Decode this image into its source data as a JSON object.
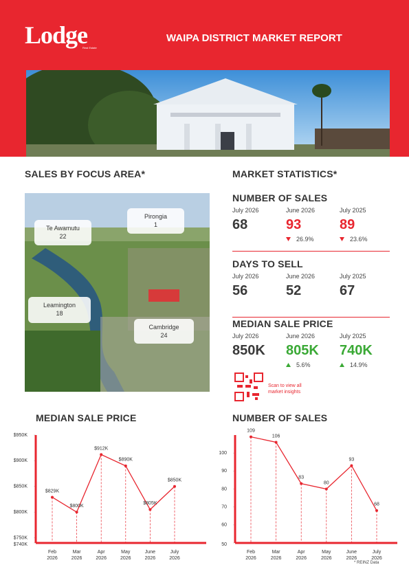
{
  "header": {
    "logo": "Lodge",
    "logo_tagline": "Real Estate",
    "title": "WAIPA DISTRICT MARKET REPORT"
  },
  "focus_area": {
    "title": "SALES BY FOCUS AREA*",
    "areas": [
      {
        "name": "Te Awamutu",
        "sales": 22
      },
      {
        "name": "Pirongia",
        "sales": 1
      },
      {
        "name": "Leamington",
        "sales": 18
      },
      {
        "name": "Cambridge",
        "sales": 24
      }
    ]
  },
  "market_statistics": {
    "title": "MARKET STATISTICS*",
    "sections": [
      {
        "title": "NUMBER OF SALES",
        "columns": [
          {
            "period": "July 2026",
            "value": 68
          },
          {
            "period": "June 2026",
            "value": 93,
            "change": "26.9%",
            "direction": "down"
          },
          {
            "period": "July 2025",
            "value": 89,
            "change": "23.6%",
            "direction": "down"
          }
        ]
      },
      {
        "title": "DAYS TO SELL",
        "columns": [
          {
            "period": "July 2026",
            "value": 56
          },
          {
            "period": "June 2026",
            "value": 52
          },
          {
            "period": "July 2025",
            "value": 67
          }
        ]
      },
      {
        "title": "MEDIAN SALE PRICE",
        "columns": [
          {
            "period": "July 2026",
            "value": "850K"
          },
          {
            "period": "June 2026",
            "value": "805K",
            "change": "5.6%",
            "direction": "up"
          },
          {
            "period": "July 2025",
            "value": "740K",
            "change": "14.9%",
            "direction": "up"
          }
        ]
      }
    ],
    "qr_caption": "Scan to view all market insights"
  },
  "footnote": "* REINZ Data",
  "chart_data": [
    {
      "type": "line",
      "title": "MEDIAN SALE PRICE",
      "categories": [
        "Feb 2026",
        "Mar 2026",
        "Apr 2026",
        "May 2026",
        "June 2026",
        "July 2026"
      ],
      "values": [
        829,
        800,
        912,
        890,
        805,
        850
      ],
      "value_labels": [
        "$829K",
        "$800K",
        "$912K",
        "$890K",
        "$805K",
        "$850K"
      ],
      "color": "#e8262f",
      "ylim": [
        740,
        950
      ],
      "yticks": [
        {
          "value": 740,
          "label": "$740K"
        },
        {
          "value": 750,
          "label": "$750K"
        },
        {
          "value": 800,
          "label": "$800K"
        },
        {
          "value": 850,
          "label": "$850K"
        },
        {
          "value": 900,
          "label": "$900K"
        },
        {
          "value": 950,
          "label": "$950K"
        }
      ]
    },
    {
      "type": "line",
      "title": "NUMBER OF SALES",
      "categories": [
        "Feb 2026",
        "Mar 2026",
        "Apr 2026",
        "May 2026",
        "June 2026",
        "July 2026"
      ],
      "values": [
        109,
        106,
        83,
        80,
        93,
        68
      ],
      "color": "#e8262f",
      "ylim": [
        50,
        110
      ],
      "yticks": [
        50,
        60,
        70,
        80,
        90,
        100
      ]
    }
  ]
}
